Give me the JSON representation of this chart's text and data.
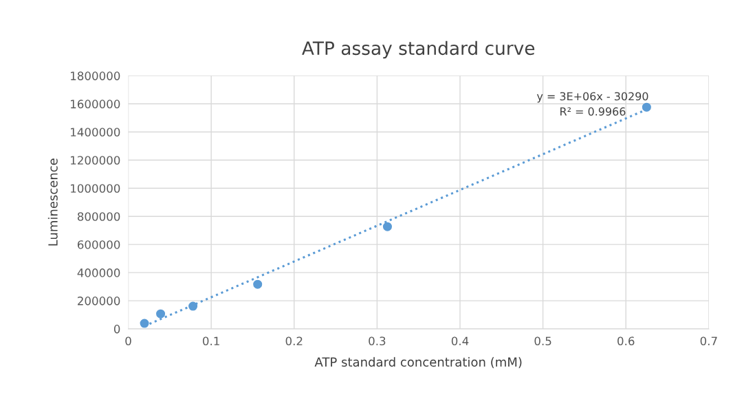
{
  "chart_data": {
    "type": "scatter",
    "title": "ATP assay standard curve",
    "xlabel": "ATP standard concentration (mM)",
    "ylabel": "Luminescence",
    "xlim": [
      0,
      0.7
    ],
    "xticks": [
      0,
      0.1,
      0.2,
      0.3,
      0.4,
      0.5,
      0.6,
      0.7
    ],
    "ylim": [
      0,
      1800000
    ],
    "yticks": [
      0,
      200000,
      400000,
      600000,
      800000,
      1000000,
      1200000,
      1400000,
      1600000,
      1800000
    ],
    "grid": true,
    "series": [
      {
        "color": "#5b9bd5",
        "marker": "circle",
        "x": [
          0.0195,
          0.039,
          0.078,
          0.156,
          0.3125,
          0.625
        ],
        "values": [
          39000,
          107000,
          161000,
          317000,
          727000,
          1576000
        ]
      },
      {
        "type": "line",
        "color": "#5b9bd5",
        "marker": "none",
        "line_style": "dotted",
        "x": [
          0.0195,
          0.625
        ],
        "values": [
          20000,
          1560000
        ]
      }
    ],
    "annotations": [
      "y = 3E+06x - 30290",
      "R² = 0.9966"
    ]
  }
}
